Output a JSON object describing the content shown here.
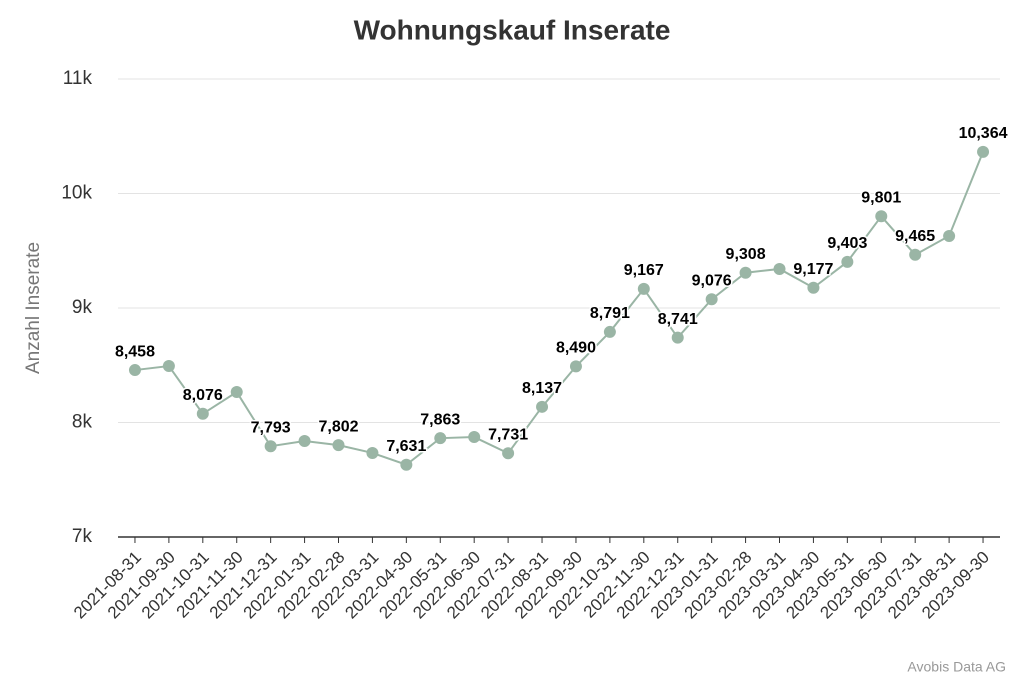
{
  "chart_data": {
    "type": "line",
    "title": "Wohnungskauf Inserate",
    "y_label": "Anzahl Inserate",
    "credit": "Avobis Data AG",
    "categories": [
      "2021-08-31",
      "2021-09-30",
      "2021-10-31",
      "2021-11-30",
      "2021-12-31",
      "2022-01-31",
      "2022-02-28",
      "2022-03-31",
      "2022-04-30",
      "2022-05-31",
      "2022-06-30",
      "2022-07-31",
      "2022-08-31",
      "2022-09-30",
      "2022-10-31",
      "2022-11-30",
      "2022-12-31",
      "2023-01-31",
      "2023-02-28",
      "2023-03-31",
      "2023-04-30",
      "2023-05-31",
      "2023-06-30",
      "2023-07-31",
      "2023-08-31",
      "2023-09-30"
    ],
    "values": [
      8458,
      8493,
      8076,
      8266,
      7793,
      7838,
      7802,
      7734,
      7631,
      7863,
      7873,
      7731,
      8137,
      8490,
      8791,
      9167,
      8741,
      9076,
      9308,
      9341,
      9177,
      9403,
      9801,
      9465,
      9629,
      10364
    ],
    "value_labels": [
      "8,458",
      null,
      "8,076",
      null,
      "7,793",
      null,
      "7,802",
      null,
      "7,631",
      "7,863",
      null,
      "7,731",
      "8,137",
      "8,490",
      "8,791",
      "9,167",
      "8,741",
      "9,076",
      "9,308",
      null,
      "9,177",
      "9,403",
      "9,801",
      "9,465",
      null,
      "10,364"
    ],
    "color": "#9ab5a5",
    "ylim": [
      7000,
      11000
    ],
    "yticks": [
      {
        "value": 7000,
        "label": "7k"
      },
      {
        "value": 8000,
        "label": "8k"
      },
      {
        "value": 9000,
        "label": "9k"
      },
      {
        "value": 10000,
        "label": "10k"
      },
      {
        "value": 11000,
        "label": "11k"
      }
    ],
    "grid": true
  }
}
